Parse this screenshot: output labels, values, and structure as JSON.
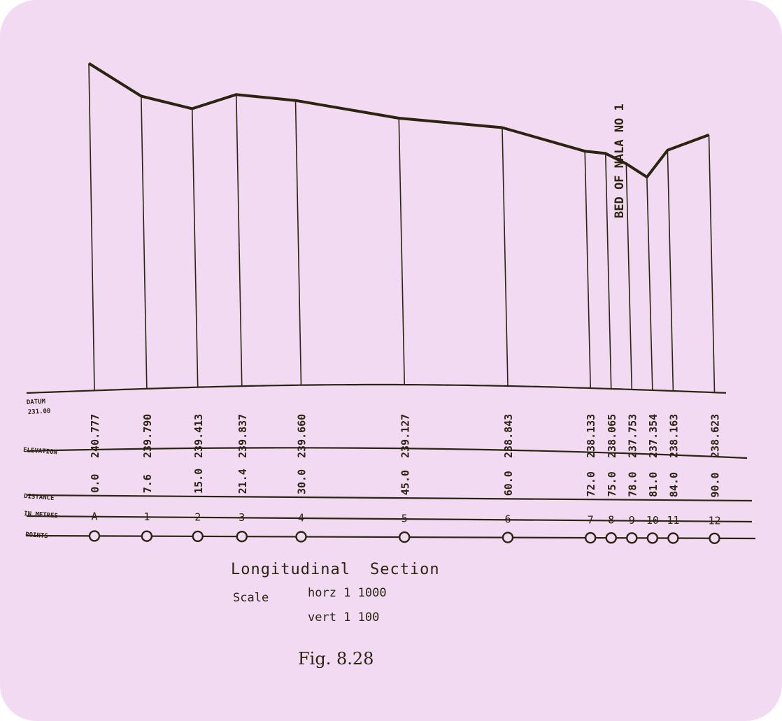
{
  "nala_label": "BED OF NALA NO 1",
  "row_labels": {
    "datum": "DATUM",
    "datum_value": "231.00",
    "elevation": "ELEVATION",
    "distance": "DISTANCE",
    "in_metres": "IN METRES",
    "points": "POINTS"
  },
  "caption": {
    "title_word1": "Longitudinal",
    "title_word2": "Section",
    "scale_label": "Scale",
    "horz": "horz  1  1000",
    "vert": "vert  1  100",
    "figure": "Fig. 8.28"
  },
  "chart_data": {
    "type": "line",
    "title": "Longitudinal Section",
    "datum": 231.0,
    "points": [
      {
        "station": "A",
        "distance": "0.0",
        "elevation": "240.777",
        "d": 0.0,
        "z": 240.777
      },
      {
        "station": "1",
        "distance": "7.6",
        "elevation": "239.790",
        "d": 7.6,
        "z": 239.79
      },
      {
        "station": "2",
        "distance": "15.0",
        "elevation": "239.413",
        "d": 15.0,
        "z": 239.413
      },
      {
        "station": "3",
        "distance": "21.4",
        "elevation": "239.837",
        "d": 21.4,
        "z": 239.837
      },
      {
        "station": "4",
        "distance": "30.0",
        "elevation": "239.660",
        "d": 30.0,
        "z": 239.66
      },
      {
        "station": "5",
        "distance": "45.0",
        "elevation": "239.127",
        "d": 45.0,
        "z": 239.127
      },
      {
        "station": "6",
        "distance": "60.0",
        "elevation": "238.843",
        "d": 60.0,
        "z": 238.843
      },
      {
        "station": "7",
        "distance": "72.0",
        "elevation": "238.133",
        "d": 72.0,
        "z": 238.133
      },
      {
        "station": "8",
        "distance": "75.0",
        "elevation": "238.065",
        "d": 75.0,
        "z": 238.065
      },
      {
        "station": "9",
        "distance": "78.0",
        "elevation": "237.753",
        "d": 78.0,
        "z": 237.753
      },
      {
        "station": "10",
        "distance": "81.0",
        "elevation": "237.354",
        "d": 81.0,
        "z": 237.354
      },
      {
        "station": "11",
        "distance": "84.0",
        "elevation": "238.163",
        "d": 84.0,
        "z": 238.163
      },
      {
        "station": "12",
        "distance": "90.0",
        "elevation": "238.623",
        "d": 90.0,
        "z": 238.623
      }
    ]
  }
}
